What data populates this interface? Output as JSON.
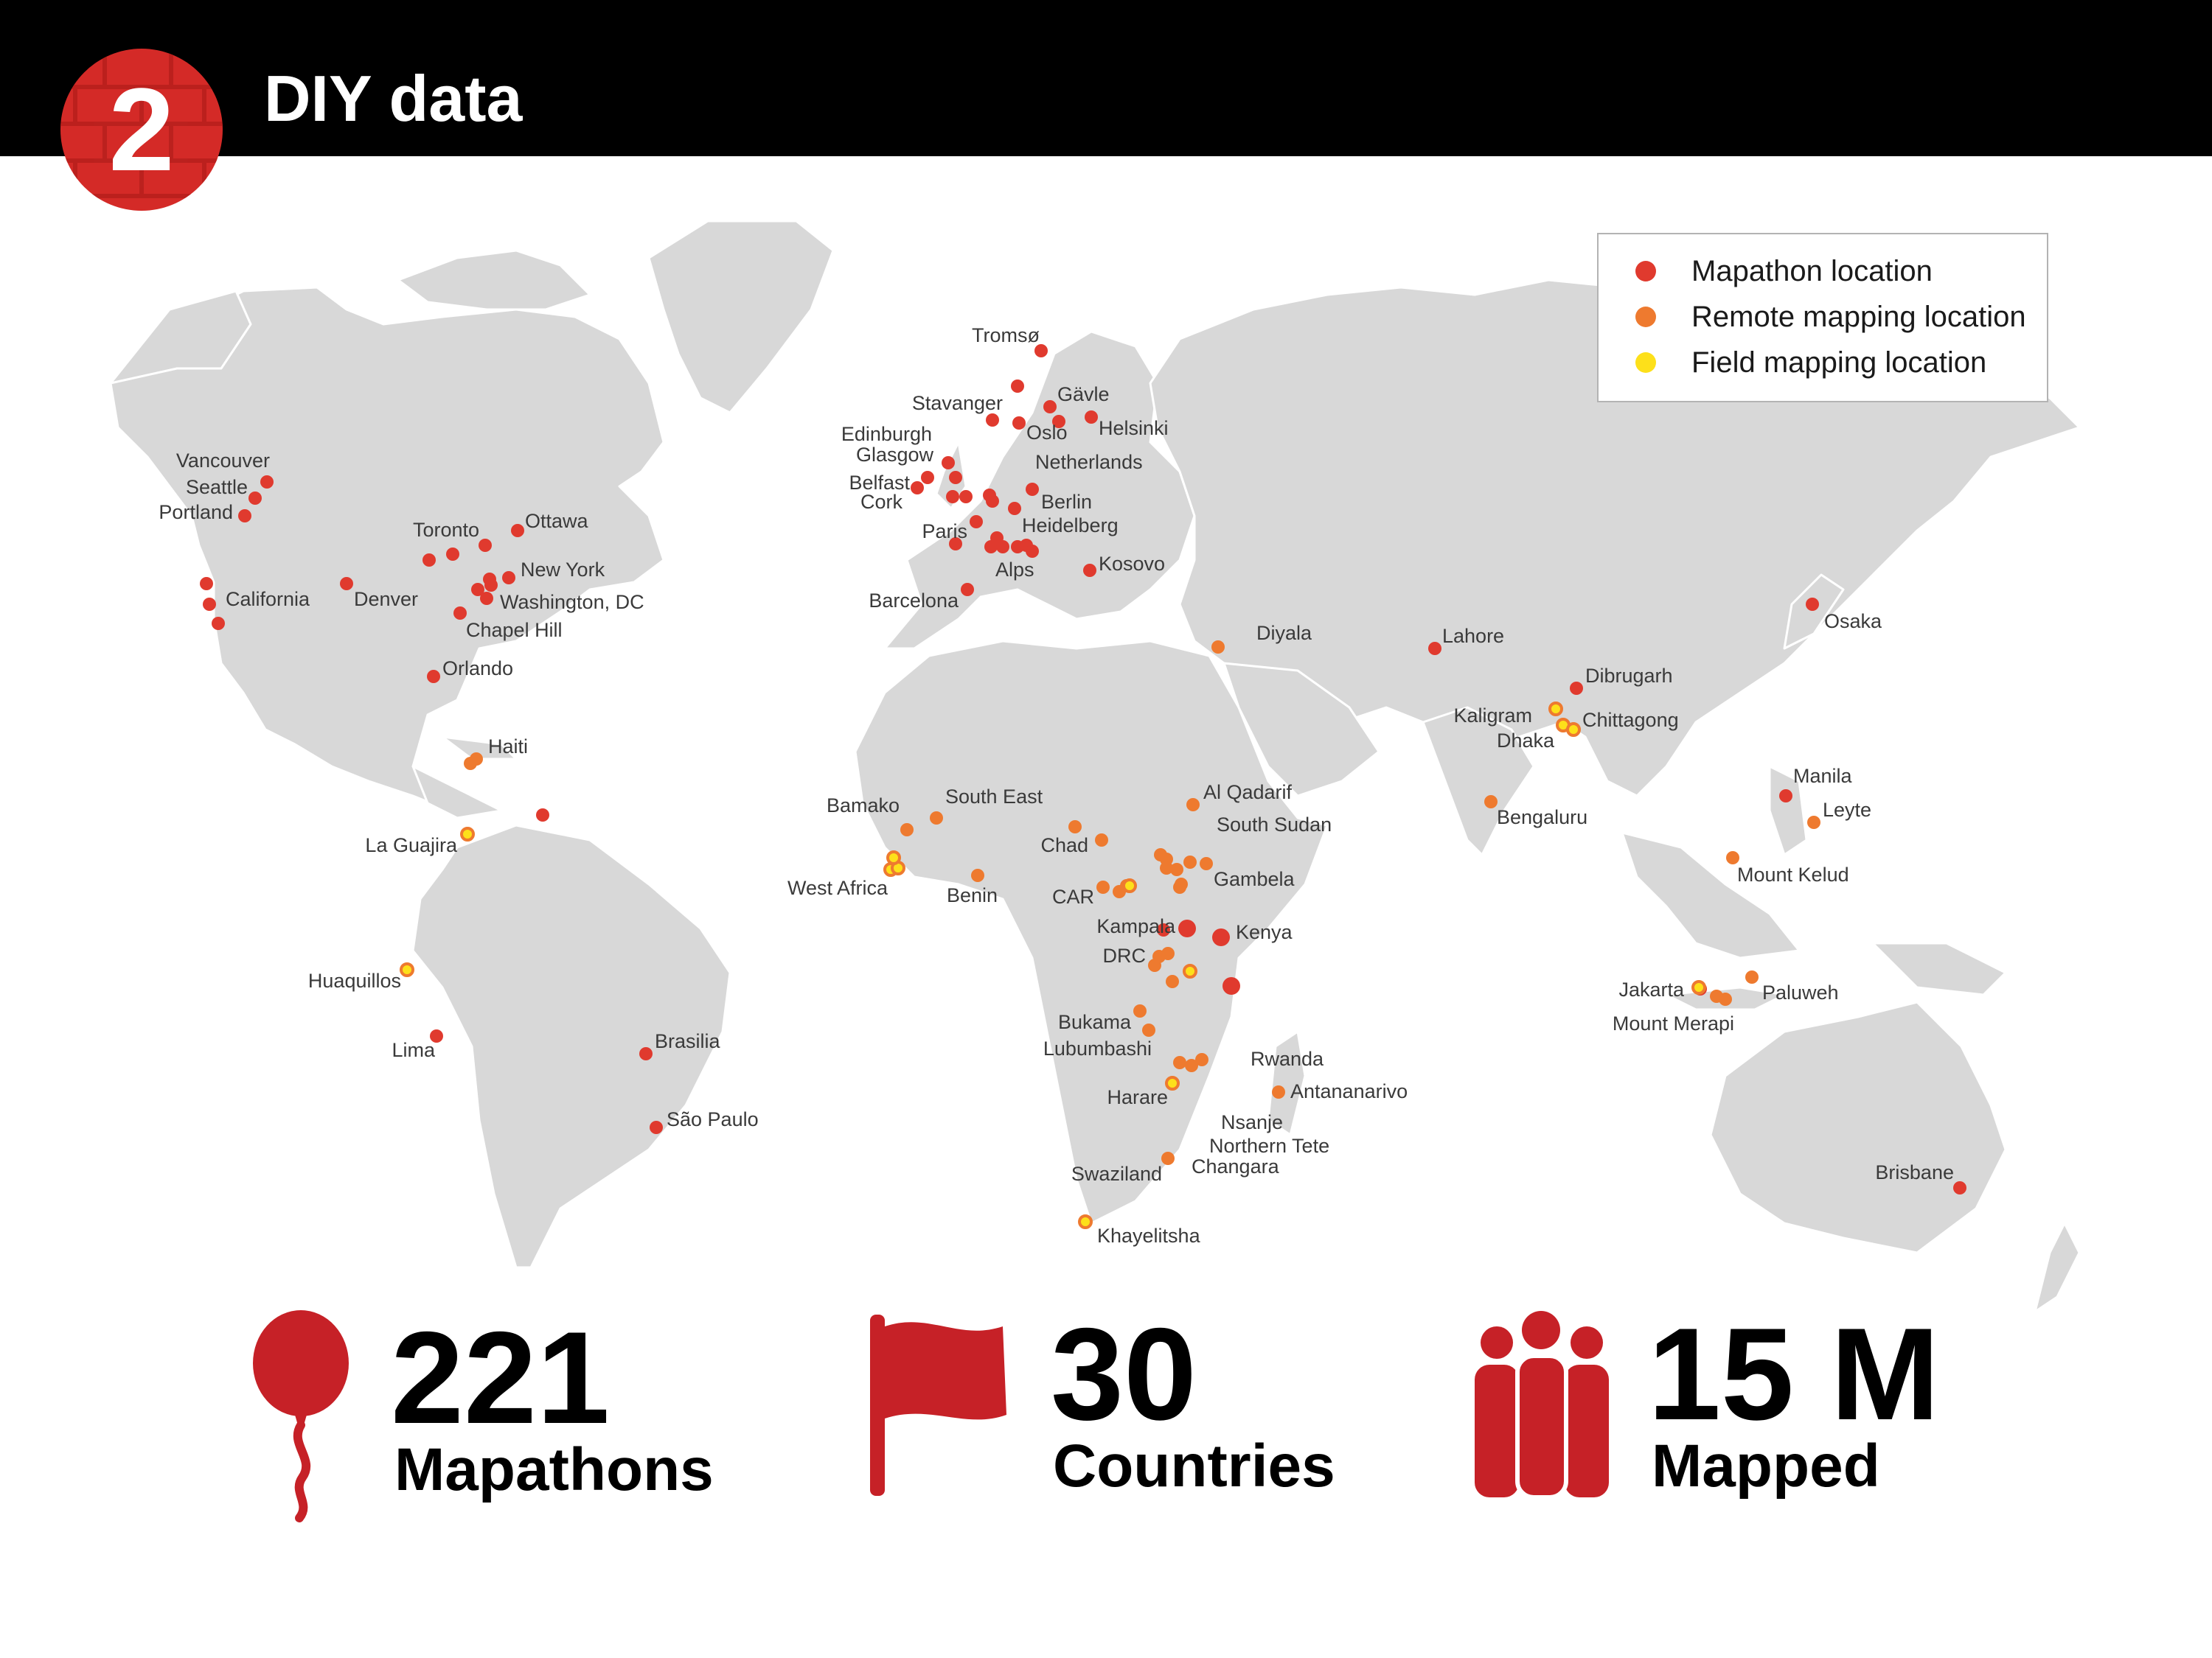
{
  "header": {
    "number": "2",
    "title": "DIY data"
  },
  "legend": [
    {
      "label": "Mapathon location",
      "color": "#e03a2e"
    },
    {
      "label": "Remote mapping location",
      "color": "#ee7a2f"
    },
    {
      "label": "Field mapping location",
      "color": "#fde01a"
    }
  ],
  "colors": {
    "land": "#d8d8d8",
    "border": "#ffffff",
    "accent_red": "#c62127",
    "header_bg": "#000000"
  },
  "stats": [
    {
      "value": "221",
      "label": "Mapathons",
      "icon": "balloon-icon"
    },
    {
      "value": "30",
      "label": "Countries",
      "icon": "flag-icon"
    },
    {
      "value": "15 M",
      "label": "Mapped",
      "icon": "people-icon"
    }
  ],
  "map_labels": [
    "Tromsø",
    "Stavanger",
    "Gävle",
    "Edinburgh",
    "Glasgow",
    "Oslo",
    "Helsinki",
    "Netherlands",
    "Belfast",
    "Cork",
    "Berlin",
    "Paris",
    "Heidelberg",
    "Alps",
    "Kosovo",
    "Barcelona",
    "Vancouver",
    "Seattle",
    "Portland",
    "Toronto",
    "Ottawa",
    "New York",
    "California",
    "Denver",
    "Washington, DC",
    "Chapel Hill",
    "Orlando",
    "Haiti",
    "La Guajira",
    "Huaquillos",
    "Lima",
    "Brasilia",
    "São Paulo",
    "Diyala",
    "Lahore",
    "Osaka",
    "Dibrugarh",
    "Kaligram",
    "Chittagong",
    "Dhaka",
    "Bengaluru",
    "Manila",
    "Leyte",
    "Mount Kelud",
    "Jakarta",
    "Paluweh",
    "Mount Merapi",
    "Brisbane",
    "Bamako",
    "South East",
    "Chad",
    "West Africa",
    "Benin",
    "CAR",
    "Al Qadarif",
    "South Sudan",
    "Gambela",
    "Kampala",
    "Kenya",
    "DRC",
    "Bukama",
    "Lubumbashi",
    "Rwanda",
    "Antananarivo",
    "Harare",
    "Nsanje",
    "Northern Tete",
    "Changara",
    "Swaziland",
    "Khayelitsha"
  ]
}
